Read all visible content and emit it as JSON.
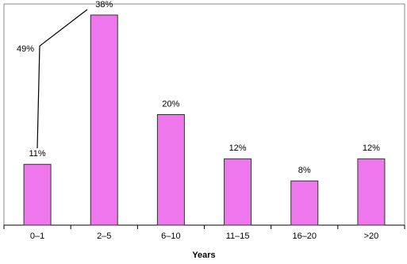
{
  "chart_data": {
    "type": "bar",
    "x_label": "Years",
    "categories": [
      "0–1",
      "2–5",
      "6–10",
      "11–15",
      "16–20",
      ">20"
    ],
    "values": [
      11,
      38,
      20,
      12,
      8,
      12
    ],
    "value_labels": [
      "11%",
      "38%",
      "20%",
      "12%",
      "8%",
      "12%"
    ],
    "color": "#ee77ee",
    "ylim": [
      0,
      40
    ],
    "annotation": "49%"
  }
}
